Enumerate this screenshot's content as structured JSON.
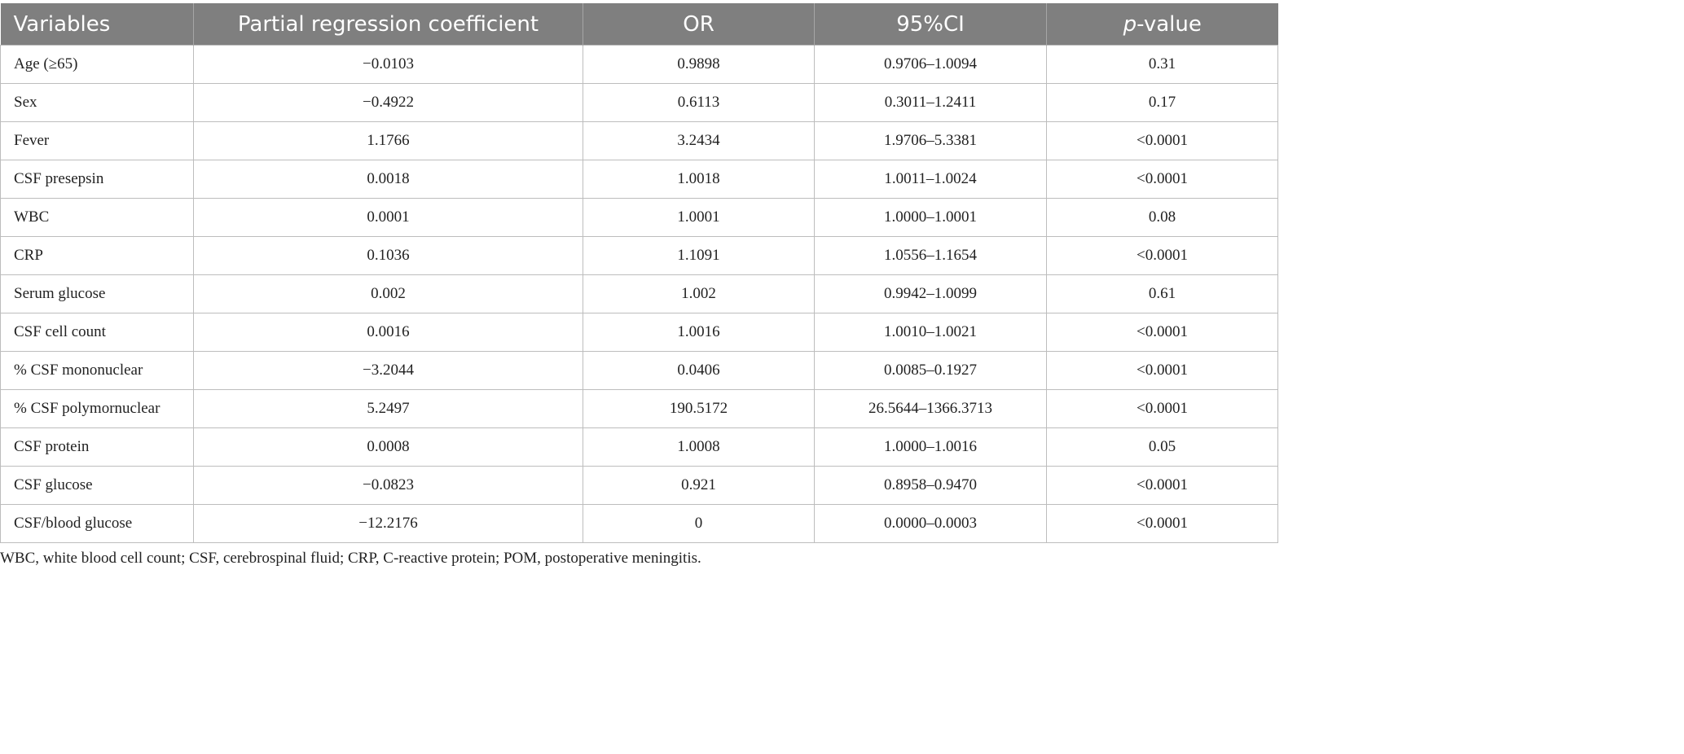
{
  "table": {
    "headers": [
      "Variables",
      "Partial regression coefficient",
      "OR",
      "95%CI",
      "p",
      "-value"
    ],
    "rows": [
      [
        "Age (≥65)",
        "−0.0103",
        "0.9898",
        "0.9706–1.0094",
        "0.31"
      ],
      [
        "Sex",
        "−0.4922",
        "0.6113",
        "0.3011–1.2411",
        "0.17"
      ],
      [
        "Fever",
        "1.1766",
        "3.2434",
        "1.9706–5.3381",
        "<0.0001"
      ],
      [
        "CSF presepsin",
        "0.0018",
        "1.0018",
        "1.0011–1.0024",
        "<0.0001"
      ],
      [
        "WBC",
        "0.0001",
        "1.0001",
        "1.0000–1.0001",
        "0.08"
      ],
      [
        "CRP",
        "0.1036",
        "1.1091",
        "1.0556–1.1654",
        "<0.0001"
      ],
      [
        "Serum glucose",
        "0.002",
        "1.002",
        "0.9942–1.0099",
        "0.61"
      ],
      [
        "CSF cell count",
        "0.0016",
        "1.0016",
        "1.0010–1.0021",
        "<0.0001"
      ],
      [
        "% CSF mononuclear",
        "−3.2044",
        "0.0406",
        "0.0085–0.1927",
        "<0.0001"
      ],
      [
        "% CSF polymornuclear",
        "5.2497",
        "190.5172",
        "26.5644–1366.3713",
        "<0.0001"
      ],
      [
        "CSF protein",
        "0.0008",
        "1.0008",
        "1.0000–1.0016",
        "0.05"
      ],
      [
        "CSF glucose",
        "−0.0823",
        "0.921",
        "0.8958–0.9470",
        "<0.0001"
      ],
      [
        "CSF/blood glucose",
        "−12.2176",
        "0",
        "0.0000–0.0003",
        "<0.0001"
      ]
    ]
  },
  "footnote": "WBC, white blood cell count; CSF, cerebrospinal fluid; CRP, C-reactive protein; POM, postoperative meningitis.",
  "colors": {
    "header_bg": "#7f7f7f",
    "header_text": "#ffffff",
    "grid": "#bdbdbd",
    "body_text": "#222222"
  }
}
